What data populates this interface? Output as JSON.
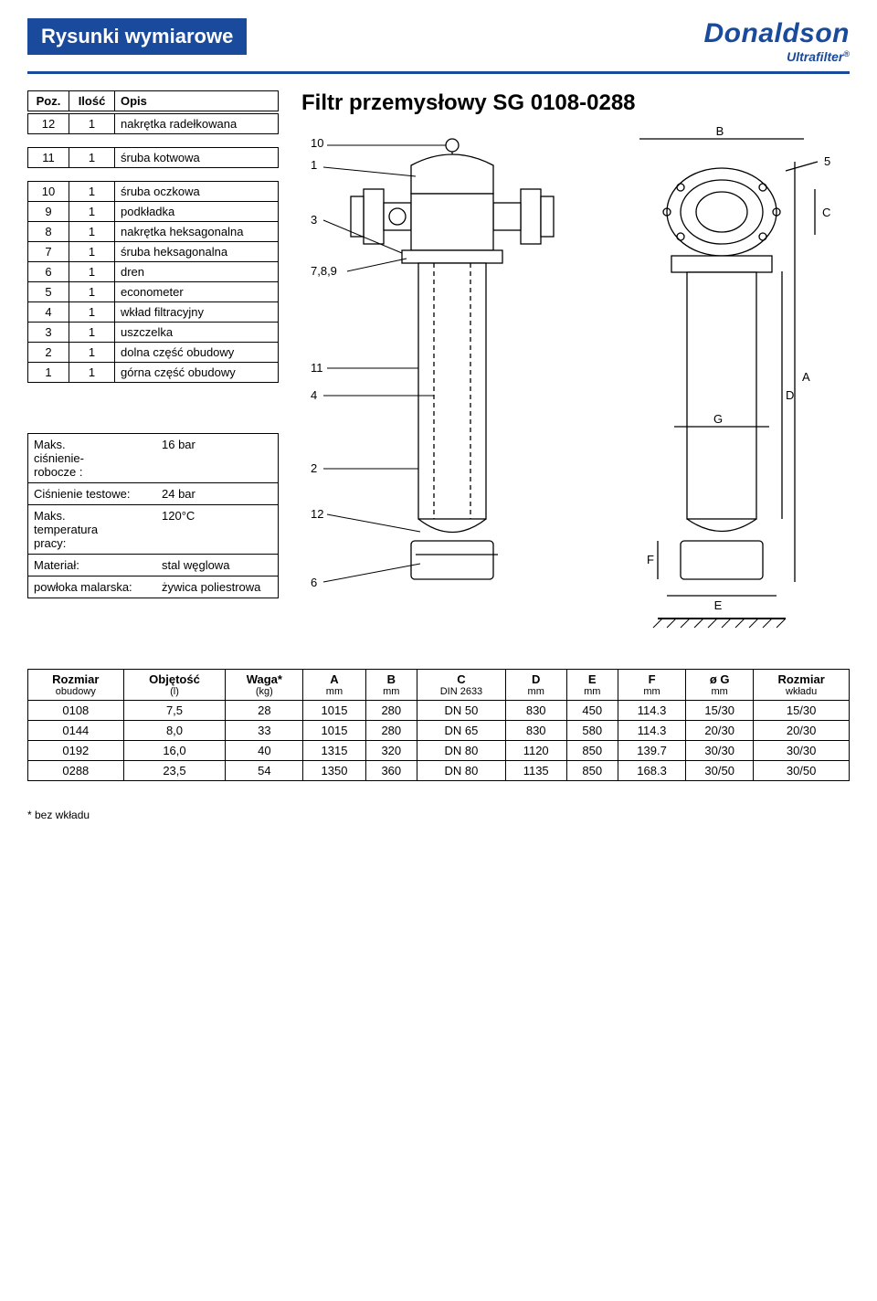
{
  "header": {
    "banner": "Rysunki wymiarowe",
    "logo_main": "Donaldson",
    "logo_sub": "Ultrafilter",
    "logo_reg": "®"
  },
  "title": "Filtr przemysłowy SG 0108-0288",
  "parts": {
    "head_poz": "Poz.",
    "head_ilosc": "Ilość",
    "head_opis": "Opis",
    "rows": [
      {
        "poz": "12",
        "ilosc": "1",
        "opis": "nakrętka radełkowana"
      },
      {
        "poz": "11",
        "ilosc": "1",
        "opis": "śruba kotwowa"
      },
      {
        "poz": "10",
        "ilosc": "1",
        "opis": "śruba oczkowa"
      },
      {
        "poz": "9",
        "ilosc": "1",
        "opis": "podkładka"
      },
      {
        "poz": "8",
        "ilosc": "1",
        "opis": "nakrętka heksagonalna"
      },
      {
        "poz": "7",
        "ilosc": "1",
        "opis": "śruba heksagonalna"
      },
      {
        "poz": "6",
        "ilosc": "1",
        "opis": "dren"
      },
      {
        "poz": "5",
        "ilosc": "1",
        "opis": "econometer"
      },
      {
        "poz": "4",
        "ilosc": "1",
        "opis": "wkład filtracyjny"
      },
      {
        "poz": "3",
        "ilosc": "1",
        "opis": "uszczelka"
      },
      {
        "poz": "2",
        "ilosc": "1",
        "opis": "dolna część obudowy"
      },
      {
        "poz": "1",
        "ilosc": "1",
        "opis": "górna część obudowy"
      }
    ]
  },
  "specs": {
    "rows": [
      {
        "label": "Maks.\nciśnienie-\nrobocze :",
        "val": "16 bar"
      },
      {
        "label": "Ciśnienie testowe:",
        "val": "24 bar"
      },
      {
        "label": "Maks.\ntemperatura\npracy:",
        "val": "120°C"
      },
      {
        "label": "Materiał:",
        "val": "stal węglowa"
      },
      {
        "label": "powłoka malarska:",
        "val": "żywica poliestrowa"
      }
    ]
  },
  "diagram": {
    "callouts_left": [
      "10",
      "1",
      "3",
      "7,8,9",
      "11",
      "4",
      "2",
      "12",
      "6"
    ],
    "callouts_right_top": [
      "5"
    ],
    "dim_labels": [
      "A",
      "B",
      "C",
      "D",
      "E",
      "F",
      "G"
    ]
  },
  "dims": {
    "head": [
      {
        "t": "Rozmiar",
        "s": "obudowy"
      },
      {
        "t": "Objętość",
        "s": "(l)"
      },
      {
        "t": "Waga*",
        "s": "(kg)"
      },
      {
        "t": "A",
        "s": "mm"
      },
      {
        "t": "B",
        "s": "mm"
      },
      {
        "t": "C",
        "s": "DIN 2633"
      },
      {
        "t": "D",
        "s": "mm"
      },
      {
        "t": "E",
        "s": "mm"
      },
      {
        "t": "F",
        "s": "mm"
      },
      {
        "t": "ø G",
        "s": "mm"
      },
      {
        "t": "Rozmiar",
        "s": "wkładu"
      }
    ],
    "rows": [
      [
        "0108",
        "7,5",
        "28",
        "1015",
        "280",
        "DN 50",
        "830",
        "450",
        "114.3",
        "15/30",
        "15/30"
      ],
      [
        "0144",
        "8,0",
        "33",
        "1015",
        "280",
        "DN 65",
        "830",
        "580",
        "114.3",
        "20/30",
        "20/30"
      ],
      [
        "0192",
        "16,0",
        "40",
        "1315",
        "320",
        "DN 80",
        "1120",
        "850",
        "139.7",
        "30/30",
        "30/30"
      ],
      [
        "0288",
        "23,5",
        "54",
        "1350",
        "360",
        "DN 80",
        "1135",
        "850",
        "168.3",
        "30/50",
        "30/50"
      ]
    ]
  },
  "footnote": "* bez wkładu",
  "colors": {
    "brand": "#194a9c",
    "border": "#000000",
    "bg": "#ffffff"
  }
}
